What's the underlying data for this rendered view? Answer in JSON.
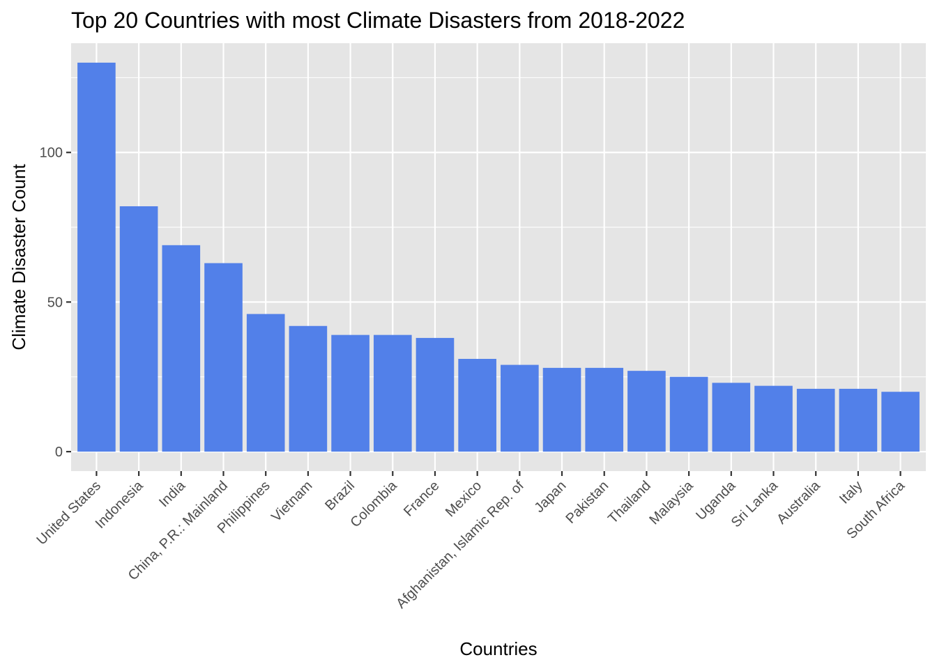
{
  "chart_data": {
    "type": "bar",
    "title": "Top 20 Countries with most Climate Disasters from 2018-2022",
    "xlabel": "Countries",
    "ylabel": "Climate Disaster Count",
    "categories": [
      "United States",
      "Indonesia",
      "India",
      "China, P.R.: Mainland",
      "Philippines",
      "Vietnam",
      "Brazil",
      "Colombia",
      "France",
      "Mexico",
      "Afghanistan, Islamic Rep. of",
      "Japan",
      "Pakistan",
      "Thailand",
      "Malaysia",
      "Uganda",
      "Sri Lanka",
      "Australia",
      "Italy",
      "South Africa"
    ],
    "values": [
      130,
      82,
      69,
      63,
      46,
      42,
      39,
      39,
      38,
      31,
      29,
      28,
      28,
      27,
      25,
      23,
      22,
      21,
      21,
      20
    ],
    "ylim": [
      -6.5,
      136.5
    ],
    "yticks": [
      0,
      50,
      100
    ],
    "ytick_labels": [
      "0",
      "50",
      "100"
    ],
    "grid": true,
    "legend": "none",
    "colors": {
      "bar": "#5280e9",
      "panel": "#e5e5e5",
      "grid": "#ffffff"
    }
  }
}
